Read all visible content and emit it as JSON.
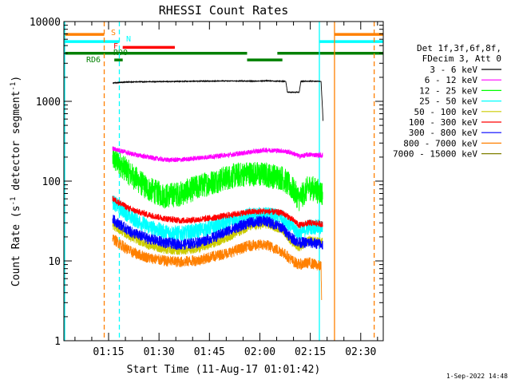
{
  "title": "RHESSI Count Rates",
  "footer_date": "1-Sep-2022 14:48",
  "chart_data": {
    "type": "line",
    "title": "RHESSI Count Rates",
    "xlabel": "Start Time (11-Aug-17 01:01:42)",
    "ylabel": "Count Rate (s⁻¹ detector segment⁻¹)",
    "ylabel_main": "Count Rate (s",
    "ylabel_mid": " detector segment",
    "ylabel_close": ")",
    "ylabel_sup": "-1",
    "yscale": "log",
    "ylim": [
      1,
      10000
    ],
    "xlim_minutes": [
      0,
      95
    ],
    "x_ticks": [
      {
        "min": 13.3,
        "label": "01:15"
      },
      {
        "min": 28.3,
        "label": "01:30"
      },
      {
        "min": 43.3,
        "label": "01:45"
      },
      {
        "min": 58.3,
        "label": "02:00"
      },
      {
        "min": 73.3,
        "label": "02:15"
      },
      {
        "min": 88.3,
        "label": "02:30"
      }
    ],
    "y_ticks": [
      {
        "v": 1,
        "label": "1"
      },
      {
        "v": 10,
        "label": "10"
      },
      {
        "v": 100,
        "label": "100"
      },
      {
        "v": 1000,
        "label": "1000"
      },
      {
        "v": 10000,
        "label": "10000"
      }
    ],
    "grid": false,
    "legend_position": "right",
    "legend_header": [
      "Det 1f,3f,6f,8f,",
      "FDecim 3, Att 0"
    ],
    "series": [
      {
        "name": "3 - 6 keV",
        "color": "#000000",
        "points": [
          [
            14.5,
            1700
          ],
          [
            18,
            1740
          ],
          [
            22,
            1760
          ],
          [
            30,
            1770
          ],
          [
            40,
            1790
          ],
          [
            50,
            1800
          ],
          [
            58,
            1790
          ],
          [
            60,
            1810
          ],
          [
            66,
            1780
          ],
          [
            66.5,
            1300
          ],
          [
            70,
            1300
          ],
          [
            70.5,
            1780
          ],
          [
            74,
            1790
          ],
          [
            76.5,
            1780
          ],
          [
            77,
            700
          ],
          [
            77.1,
            500
          ]
        ]
      },
      {
        "name": "6 - 12 keV",
        "color": "#ff00ff",
        "points": [
          [
            14.5,
            255
          ],
          [
            17,
            240
          ],
          [
            20,
            220
          ],
          [
            25,
            200
          ],
          [
            30,
            185
          ],
          [
            35,
            185
          ],
          [
            40,
            195
          ],
          [
            45,
            205
          ],
          [
            50,
            215
          ],
          [
            55,
            230
          ],
          [
            60,
            245
          ],
          [
            65,
            240
          ],
          [
            68,
            225
          ],
          [
            70,
            205
          ],
          [
            73,
            215
          ],
          [
            77,
            210
          ]
        ]
      },
      {
        "name": "12 - 25 keV",
        "color": "#00ff00",
        "points": [
          [
            14.5,
            190
          ],
          [
            17,
            160
          ],
          [
            20,
            120
          ],
          [
            25,
            80
          ],
          [
            30,
            65
          ],
          [
            35,
            70
          ],
          [
            40,
            85
          ],
          [
            45,
            100
          ],
          [
            50,
            115
          ],
          [
            55,
            125
          ],
          [
            60,
            120
          ],
          [
            65,
            110
          ],
          [
            68,
            80
          ],
          [
            70,
            60
          ],
          [
            73,
            85
          ],
          [
            77,
            70
          ]
        ]
      },
      {
        "name": "25 - 50 keV",
        "color": "#00ffff",
        "points": [
          [
            14.5,
            55
          ],
          [
            17,
            45
          ],
          [
            20,
            35
          ],
          [
            25,
            27
          ],
          [
            30,
            23
          ],
          [
            35,
            22
          ],
          [
            40,
            24
          ],
          [
            45,
            27
          ],
          [
            50,
            31
          ],
          [
            55,
            37
          ],
          [
            60,
            38
          ],
          [
            65,
            35
          ],
          [
            68,
            27
          ],
          [
            70,
            22
          ],
          [
            73,
            27
          ],
          [
            77,
            26
          ]
        ]
      },
      {
        "name": "50 - 100 keV",
        "color": "#cccc00",
        "points": [
          [
            14.5,
            28
          ],
          [
            17,
            24
          ],
          [
            20,
            20
          ],
          [
            25,
            16
          ],
          [
            30,
            14
          ],
          [
            35,
            13.5
          ],
          [
            40,
            14.5
          ],
          [
            45,
            17
          ],
          [
            50,
            21
          ],
          [
            55,
            27
          ],
          [
            60,
            29
          ],
          [
            65,
            25
          ],
          [
            68,
            17
          ],
          [
            70,
            15
          ],
          [
            73,
            18
          ],
          [
            77,
            17
          ]
        ]
      },
      {
        "name": "100 - 300 keV",
        "color": "#ff0000",
        "points": [
          [
            14.5,
            60
          ],
          [
            17,
            52
          ],
          [
            20,
            44
          ],
          [
            25,
            38
          ],
          [
            30,
            34
          ],
          [
            35,
            32
          ],
          [
            40,
            33
          ],
          [
            45,
            35
          ],
          [
            50,
            38
          ],
          [
            55,
            41
          ],
          [
            60,
            42
          ],
          [
            65,
            40
          ],
          [
            68,
            33
          ],
          [
            70,
            28
          ],
          [
            73,
            30
          ],
          [
            77,
            29
          ]
        ]
      },
      {
        "name": "300 - 800 keV",
        "color": "#0000ff",
        "points": [
          [
            14.5,
            33
          ],
          [
            17,
            28
          ],
          [
            20,
            23
          ],
          [
            25,
            19
          ],
          [
            30,
            17
          ],
          [
            35,
            16
          ],
          [
            40,
            17
          ],
          [
            45,
            20
          ],
          [
            50,
            25
          ],
          [
            55,
            30
          ],
          [
            60,
            32
          ],
          [
            65,
            26
          ],
          [
            68,
            19
          ],
          [
            70,
            17
          ],
          [
            73,
            17
          ],
          [
            77,
            16
          ]
        ]
      },
      {
        "name": "800 - 7000 keV",
        "color": "#ff8000",
        "points": [
          [
            14.5,
            19
          ],
          [
            17,
            16
          ],
          [
            20,
            13
          ],
          [
            25,
            11
          ],
          [
            30,
            10
          ],
          [
            35,
            9.7
          ],
          [
            40,
            10.2
          ],
          [
            45,
            11.5
          ],
          [
            50,
            13
          ],
          [
            55,
            15.5
          ],
          [
            60,
            16
          ],
          [
            65,
            13
          ],
          [
            68,
            10
          ],
          [
            70,
            9
          ],
          [
            73,
            9.5
          ],
          [
            76.5,
            8.5
          ],
          [
            76.7,
            2.5
          ]
        ]
      },
      {
        "name": "7000 - 15000 keV",
        "color": "#808000",
        "points": []
      }
    ],
    "state_bars": [
      {
        "label": "S",
        "color": "#ff8000",
        "y": 6900,
        "segments": [
          [
            -100,
            12
          ]
        ],
        "dashed_at": [
          12
        ]
      },
      {
        "label": "N",
        "color": "#00ffff",
        "y": 5600,
        "segments": [
          [
            -100,
            16.5
          ]
        ],
        "dashed_at": [
          16.5
        ]
      },
      {
        "label": "F",
        "color": "#ff0000",
        "y": 4750,
        "segments": [
          [
            17.5,
            33
          ]
        ]
      },
      {
        "label": "RD0",
        "color": "#008000",
        "y": 4000,
        "segments": [
          [
            -100,
            54.5
          ],
          [
            63.5,
            95
          ]
        ]
      },
      {
        "label": "RD6",
        "color": "#008000",
        "y": 3300,
        "segments": [
          [
            15,
            17.5
          ],
          [
            54.5,
            65
          ]
        ]
      }
    ],
    "right_bars": [
      {
        "color": "#00ffff",
        "y": 5600,
        "segments": [
          [
            76,
            95
          ]
        ]
      },
      {
        "color": "#ff8000",
        "y": 6900,
        "segments": [
          [
            80.5,
            95
          ]
        ]
      }
    ],
    "vertical_lines": [
      {
        "min": 0,
        "color": "#00ffff",
        "dashed": false
      },
      {
        "min": 12,
        "color": "#ff8000",
        "dashed": true
      },
      {
        "min": 16.5,
        "color": "#00ffff",
        "dashed": true
      },
      {
        "min": 76,
        "color": "#00ffff",
        "dashed": false
      },
      {
        "min": 80.5,
        "color": "#ff8000",
        "dashed": false
      },
      {
        "min": 92.3,
        "color": "#ff8000",
        "dashed": true
      }
    ]
  }
}
